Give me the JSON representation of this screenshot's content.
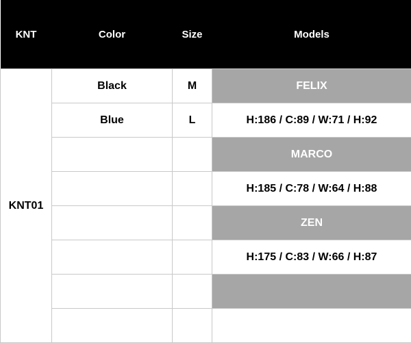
{
  "headers": [
    "KNT",
    "Color",
    "Size",
    "Models"
  ],
  "code": "KNT01",
  "rows": [
    {
      "color": "Black",
      "size": "M",
      "model": "FELIX",
      "highlight": true
    },
    {
      "color": "Blue",
      "size": "L",
      "model": "H:186 / C:89 / W:71 / H:92",
      "highlight": false
    },
    {
      "color": "",
      "size": "",
      "model": "MARCO",
      "highlight": true
    },
    {
      "color": "",
      "size": "",
      "model": "H:185 / C:78 / W:64 / H:88",
      "highlight": false
    },
    {
      "color": "",
      "size": "",
      "model": "ZEN",
      "highlight": true
    },
    {
      "color": "",
      "size": "",
      "model": "H:175 / C:83 / W:66 / H:87",
      "highlight": false
    },
    {
      "color": "",
      "size": "",
      "model": "",
      "highlight": true
    },
    {
      "color": "",
      "size": "",
      "model": "",
      "highlight": false
    }
  ],
  "colors": {
    "header_bg": "#000000",
    "highlight_bg": "#a6a6a6",
    "border": "#c8c8c8"
  }
}
